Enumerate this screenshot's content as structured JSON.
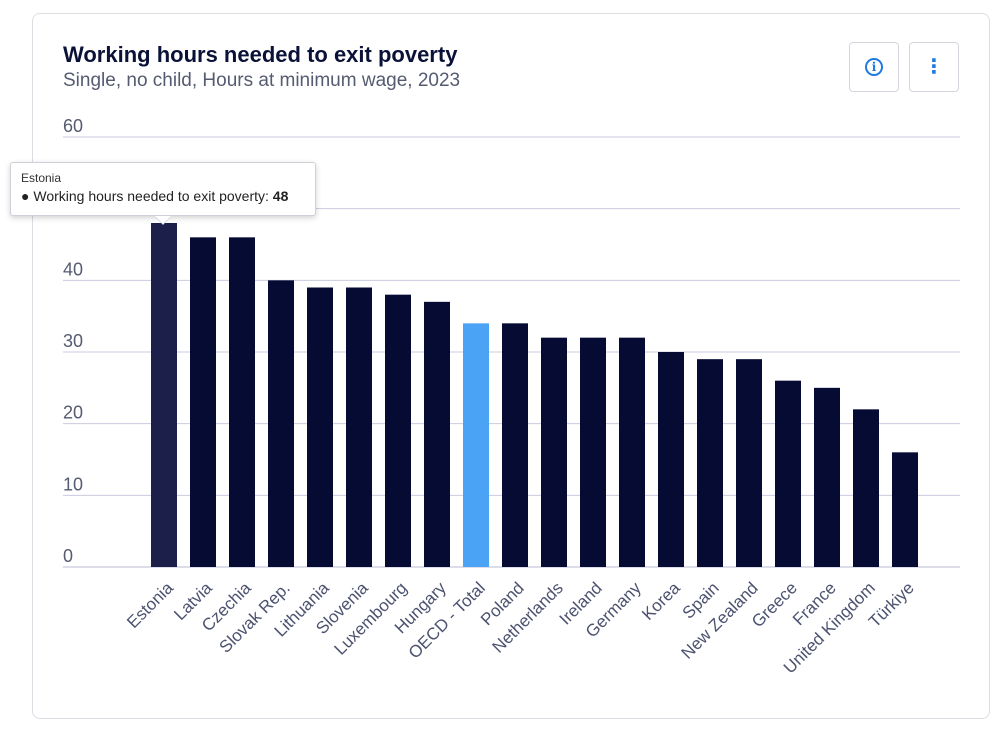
{
  "header": {
    "title": "Working hours needed to exit poverty",
    "subtitle": "Single, no child, Hours at minimum wage, 2023"
  },
  "toolbar": {
    "info_icon": "info-icon",
    "more_icon": "more-vertical-icon",
    "info_glyph": "i",
    "more_glyph": "⋮"
  },
  "tooltip": {
    "category": "Estonia",
    "label": "Working hours needed to exit poverty: ",
    "value": "48"
  },
  "colors": {
    "bar": "#050b33",
    "bar_hovered": "#1b1f4a",
    "bar_highlight": "#4aa3f5",
    "grid": "#c9cbe0",
    "axis_text": "#555b70",
    "tick_text": "#4c5270"
  },
  "chart_data": {
    "type": "bar",
    "title": "Working hours needed to exit poverty",
    "subtitle": "Single, no child, Hours at minimum wage, 2023",
    "categories": [
      "Estonia",
      "Latvia",
      "Czechia",
      "Slovak Rep.",
      "Lithuania",
      "Slovenia",
      "Luxembourg",
      "Hungary",
      "OECD - Total",
      "Poland",
      "Netherlands",
      "Ireland",
      "Germany",
      "Korea",
      "Spain",
      "New Zealand",
      "Greece",
      "France",
      "United Kingdom",
      "Türkiye"
    ],
    "series": [
      {
        "name": "Working hours needed to exit poverty",
        "values": [
          48,
          46,
          46,
          40,
          39,
          39,
          38,
          37,
          34,
          34,
          32,
          32,
          32,
          30,
          29,
          29,
          26,
          25,
          22,
          16
        ]
      }
    ],
    "highlighted_category": "OECD - Total",
    "hovered_category": "Estonia",
    "ylim": [
      0,
      60
    ],
    "yticks": [
      0,
      10,
      20,
      30,
      40,
      50,
      60
    ],
    "ytick_labels": [
      "0",
      "10",
      "20",
      "30",
      "40",
      "",
      "60"
    ],
    "grid": true,
    "legend": false
  }
}
